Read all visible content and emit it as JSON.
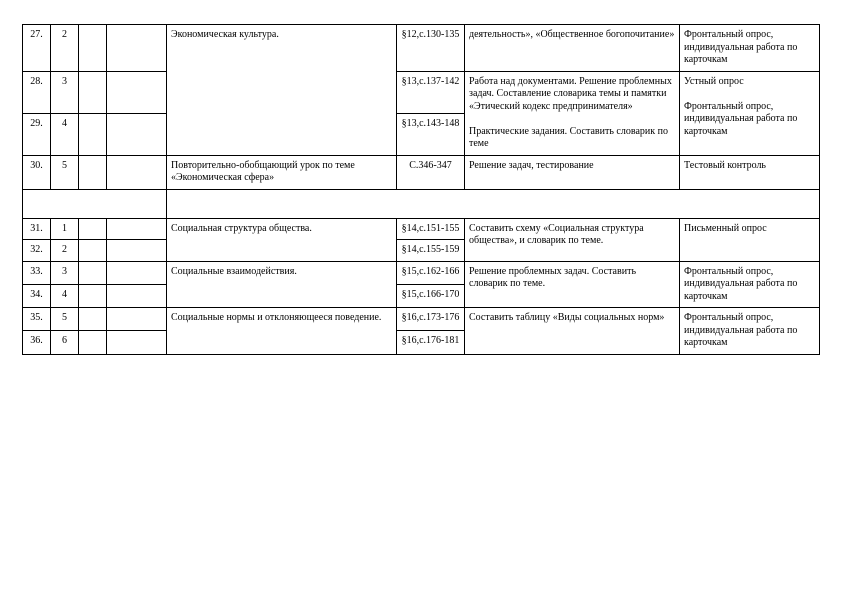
{
  "font_color": "#000000",
  "border_color": "#000000",
  "background_color": "#ffffff",
  "base_font_family": "Times New Roman",
  "rows": [
    {
      "num": "27.",
      "sub": "2",
      "topic": "",
      "ref": "§12,с.130-135",
      "activity": "деятельность», «Общественное богопочитание»",
      "control": "Фронтальный опрос, индивидуальная работа по карточкам"
    },
    {
      "num": "28.",
      "sub": "3",
      "topic": "Экономическая культура.",
      "ref": "§13,с.137-142",
      "activity": "Работа над документами. Решение проблемных задач. Составление словарика темы и памятки «Этический кодекс пред­принимателя»",
      "control": "Устный опрос"
    },
    {
      "num": "29.",
      "sub": "4",
      "topic": "",
      "ref": "§13,с.143-148",
      "activity": "Практические задания. Составить словарик по теме",
      "control": "Фронтальный опрос, индивидуальная работа по карточкам"
    },
    {
      "num": "30.",
      "sub": "5",
      "topic": "Повторительно-обобщающий урок по теме «Экономическая сфера»",
      "ref": "С.346-347",
      "activity": "Решение задач, тестирование",
      "control": "Тестовый контроль"
    },
    {
      "num": "31.",
      "sub": "1",
      "topic": "Социальная структура общества.",
      "ref": "§14,с.151-155",
      "activity": "Составить схему «Социальная структура общества», и словарик по теме.",
      "control": "Письменный опрос"
    },
    {
      "num": "32.",
      "sub": "2",
      "topic": "",
      "ref": "§14,с.155-159",
      "activity": "",
      "control": ""
    },
    {
      "num": "33.",
      "sub": "3",
      "topic": "Социальные взаимодействия.",
      "ref": "§15,с.162-166",
      "activity": "Решение проблемных задач. Составить словарик по теме.",
      "control": "Фронтальный опрос, индивидуальная работа по карточкам"
    },
    {
      "num": "34.",
      "sub": "4",
      "topic": "",
      "ref": "§15,с.166-170",
      "activity": "",
      "control": ""
    },
    {
      "num": "35.",
      "sub": "5",
      "topic": "Социальные нормы и отклоняющееся поведение.",
      "ref": "§16,с.173-176",
      "activity": "Составить таблицу «Виды со­циальных норм»",
      "control": "Фронтальный опрос, индивидуальная работа по карточкам"
    },
    {
      "num": "36.",
      "sub": "6",
      "topic": "",
      "ref": "§16,с.176-181",
      "activity": "",
      "control": ""
    }
  ]
}
